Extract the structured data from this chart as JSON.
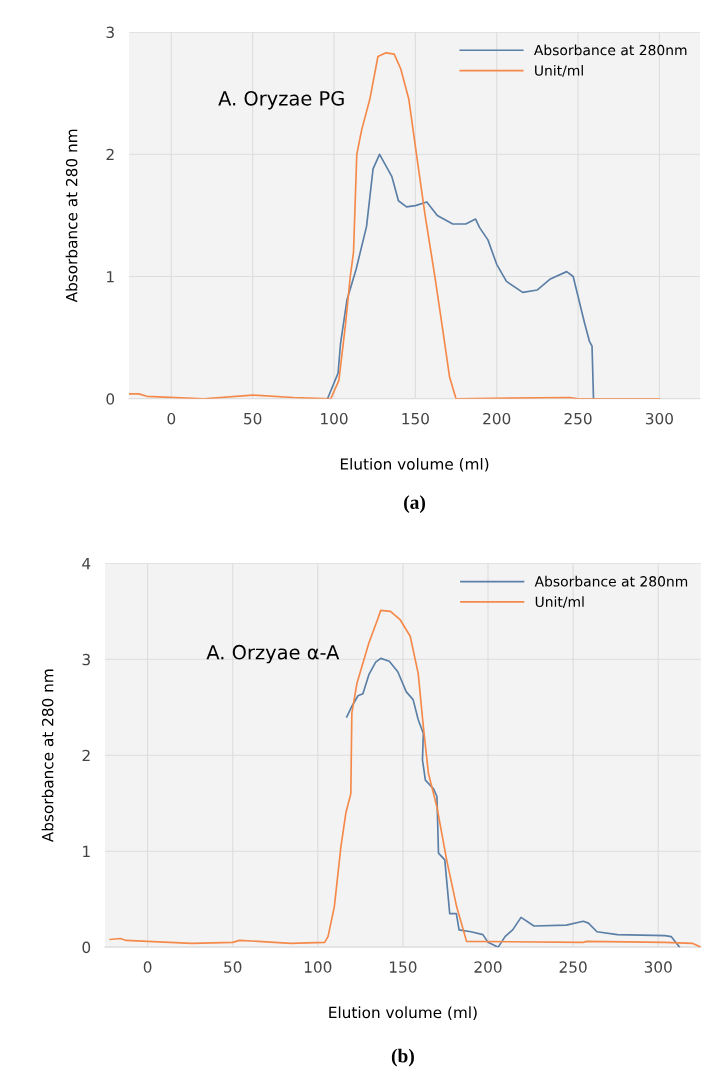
{
  "chart_data": [
    {
      "type": "line",
      "xlabel": "Elution volume (ml)",
      "ylabel": "Absorbance at 280 nm",
      "xlim": [
        -26,
        325
      ],
      "ylim": [
        0,
        3
      ],
      "xticks": [
        0,
        50,
        100,
        150,
        200,
        250,
        300
      ],
      "yticks": [
        0,
        1,
        2,
        3
      ],
      "grid": true,
      "legend": "top right",
      "line_style": "solid",
      "marker": "none",
      "annotations": [
        "A. Oryzae PG",
        "(a)"
      ],
      "series": [
        {
          "name": "Absorbance at 280nm",
          "color": "#5b7fa6",
          "x": [
            96,
            102.5,
            104,
            108,
            113.6,
            120,
            124,
            128,
            135.5,
            139.6,
            144.6,
            150,
            157,
            163.5,
            173,
            181,
            187,
            189.5,
            194.6,
            200,
            206,
            216,
            225,
            233,
            243,
            247,
            254,
            257,
            258.6,
            259.5
          ],
          "values": [
            0,
            0.21,
            0.45,
            0.81,
            1.06,
            1.41,
            1.88,
            2.0,
            1.82,
            1.62,
            1.57,
            1.58,
            1.61,
            1.5,
            1.43,
            1.43,
            1.47,
            1.4,
            1.3,
            1.1,
            0.96,
            0.87,
            0.89,
            0.98,
            1.04,
            1.0,
            0.62,
            0.47,
            0.43,
            0
          ]
        },
        {
          "name": "Unit/ml",
          "color": "#f4894a",
          "x": [
            -26,
            -20,
            -15,
            20,
            50,
            75,
            98,
            103,
            107,
            110,
            112,
            114,
            117,
            122,
            127,
            132,
            137,
            141,
            146,
            150.7,
            156,
            162,
            167,
            171,
            175,
            245,
            250,
            300
          ],
          "values": [
            0.04,
            0.04,
            0.02,
            0.0,
            0.03,
            0.01,
            0.0,
            0.15,
            0.6,
            1.0,
            1.2,
            2.0,
            2.2,
            2.45,
            2.8,
            2.83,
            2.82,
            2.7,
            2.45,
            2.0,
            1.5,
            1.0,
            0.55,
            0.18,
            0,
            0.01,
            0,
            0
          ]
        }
      ]
    },
    {
      "type": "line",
      "xlabel": "Elution volume (ml)",
      "ylabel": "Absorbance at 280 nm",
      "xlim": [
        -25,
        325
      ],
      "ylim": [
        0,
        4
      ],
      "xticks": [
        0,
        50,
        100,
        150,
        200,
        250,
        300
      ],
      "yticks": [
        0,
        1,
        2,
        3,
        4
      ],
      "grid": true,
      "legend": "top right",
      "line_style": "solid",
      "marker": "none",
      "annotations": [
        "A. Orzyae α-A",
        "(b)"
      ],
      "series": [
        {
          "name": "Absorbance at 280nm",
          "color": "#5b7fa6",
          "x": [
            117,
            119.7,
            123.6,
            126.5,
            130,
            134,
            137,
            142,
            147,
            152,
            156,
            159,
            162,
            161.5,
            163.2,
            168,
            170,
            170.9,
            174.6,
            177.5,
            181.4,
            183,
            190,
            197,
            200,
            206,
            210,
            214.5,
            219.4,
            227,
            246,
            256,
            259,
            264,
            276,
            304,
            307.6,
            312.5
          ],
          "values": [
            2.4,
            2.5,
            2.62,
            2.64,
            2.84,
            2.97,
            3.01,
            2.98,
            2.87,
            2.66,
            2.58,
            2.37,
            2.23,
            1.95,
            1.74,
            1.65,
            1.57,
            0.98,
            0.91,
            0.35,
            0.35,
            0.18,
            0.16,
            0.13,
            0.05,
            0,
            0.11,
            0.18,
            0.31,
            0.22,
            0.23,
            0.27,
            0.25,
            0.16,
            0.13,
            0.12,
            0.11,
            0
          ]
        },
        {
          "name": "Unit/ml",
          "color": "#f4894a",
          "x": [
            -22,
            -16,
            -12.6,
            0,
            26,
            50,
            54,
            65,
            84,
            104,
            106,
            109.7,
            113.6,
            116.5,
            119.4,
            120,
            123,
            130,
            135,
            137,
            142.7,
            148.5,
            154.3,
            159,
            162,
            165,
            170,
            175.7,
            181.6,
            187.4,
            256,
            258,
            304,
            320,
            325
          ],
          "values": [
            0.08,
            0.09,
            0.07,
            0.06,
            0.04,
            0.05,
            0.07,
            0.06,
            0.04,
            0.05,
            0.11,
            0.42,
            1.05,
            1.4,
            1.6,
            2.44,
            2.75,
            3.17,
            3.41,
            3.51,
            3.5,
            3.41,
            3.24,
            2.85,
            2.3,
            1.81,
            1.46,
            0.91,
            0.42,
            0.06,
            0.05,
            0.06,
            0.05,
            0.04,
            0
          ]
        }
      ]
    }
  ]
}
